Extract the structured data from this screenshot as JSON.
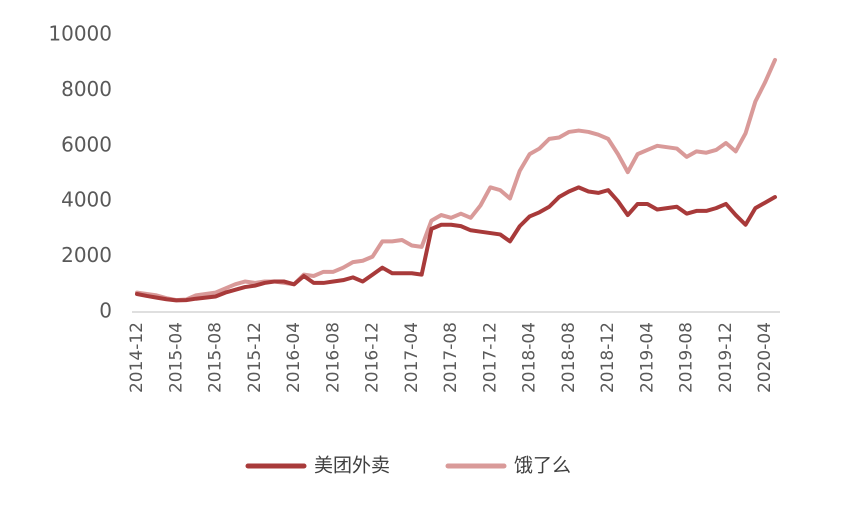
{
  "chart_data": {
    "type": "line",
    "categories": [
      "2014-12",
      null,
      null,
      null,
      "2015-04",
      null,
      null,
      null,
      "2015-08",
      null,
      null,
      null,
      "2015-12",
      null,
      null,
      null,
      "2016-04",
      null,
      null,
      null,
      "2016-08",
      null,
      null,
      null,
      "2016-12",
      null,
      null,
      null,
      "2017-04",
      null,
      null,
      null,
      "2017-08",
      null,
      null,
      null,
      "2017-12",
      null,
      null,
      null,
      "2018-04",
      null,
      null,
      null,
      "2018-08",
      null,
      null,
      null,
      "2018-12",
      null,
      null,
      null,
      "2019-04",
      null,
      null,
      null,
      "2019-08",
      null,
      null,
      null,
      "2019-12",
      null,
      null,
      null,
      "2020-04",
      null
    ],
    "series": [
      {
        "name": "美团外卖",
        "color": "#a83a3a",
        "values": [
          650,
          580,
          520,
          460,
          420,
          430,
          480,
          520,
          560,
          700,
          800,
          900,
          950,
          1050,
          1100,
          1100,
          1000,
          1300,
          1050,
          1050,
          1100,
          1150,
          1250,
          1100,
          1350,
          1600,
          1400,
          1400,
          1400,
          1350,
          3000,
          3150,
          3150,
          3100,
          2950,
          2900,
          2850,
          2800,
          2550,
          3100,
          3450,
          3600,
          3800,
          4150,
          4350,
          4500,
          4350,
          4300,
          4400,
          4000,
          3500,
          3900,
          3900,
          3700,
          3750,
          3800,
          3550,
          3650,
          3650,
          3750,
          3900,
          3500,
          3150,
          3750,
          3950,
          4150
        ]
      },
      {
        "name": "饿了么",
        "color": "#d99a99",
        "values": [
          700,
          650,
          600,
          500,
          430,
          450,
          600,
          650,
          700,
          850,
          1000,
          1100,
          1050,
          1100,
          1100,
          1050,
          1000,
          1350,
          1300,
          1450,
          1450,
          1600,
          1800,
          1850,
          2000,
          2550,
          2550,
          2600,
          2400,
          2350,
          3300,
          3500,
          3400,
          3550,
          3400,
          3850,
          4500,
          4400,
          4100,
          5100,
          5700,
          5900,
          6250,
          6300,
          6500,
          6550,
          6500,
          6400,
          6250,
          5700,
          5050,
          5700,
          5850,
          6000,
          5950,
          5900,
          5600,
          5800,
          5750,
          5850,
          6100,
          5800,
          6450,
          7600,
          8300,
          9100
        ]
      }
    ],
    "ylim": [
      0,
      10000
    ],
    "yticks": [
      0,
      2000,
      4000,
      6000,
      8000,
      10000
    ],
    "grid": false,
    "legend": "bottom"
  }
}
